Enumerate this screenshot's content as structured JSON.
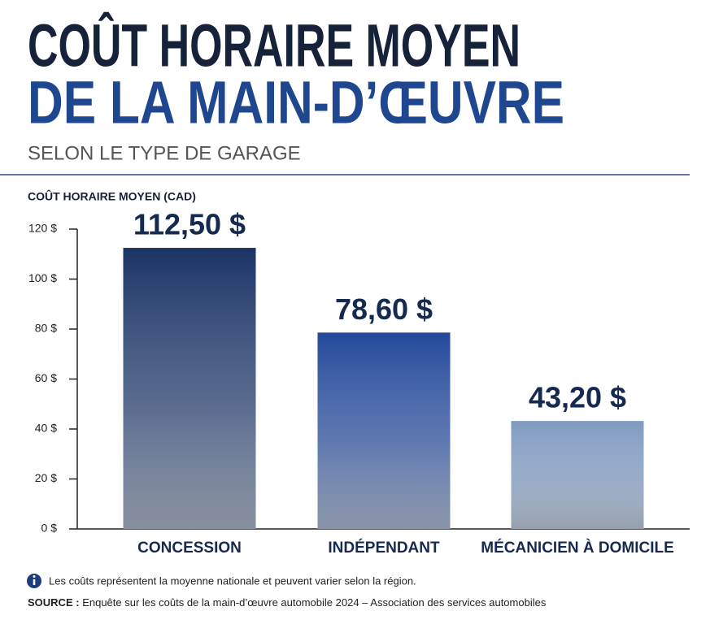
{
  "chart_data": {
    "type": "bar",
    "title": [
      "COÛT HORAIRE MOYEN",
      "DE LA MAIN-D’ŒUVRE"
    ],
    "subtitle": "SELON LE TYPE DE GARAGE",
    "ylabel": "COÛT HORAIRE MOYEN (CAD)",
    "categories": [
      "CONCESSION",
      "INDÉPENDANT",
      "MÉCANICIEN À DOMICILE"
    ],
    "values": [
      112.5,
      78.6,
      43.2
    ],
    "value_labels": [
      "112,50 $",
      "78,60 $",
      "43,20 $"
    ],
    "colors": [
      "#1b3466",
      "#23489a",
      "#7f9ac0"
    ],
    "ylim": [
      0,
      120
    ],
    "yticks": [
      {
        "value": 0,
        "label": "0 $"
      },
      {
        "value": 20,
        "label": "20 $"
      },
      {
        "value": 40,
        "label": "40 $"
      },
      {
        "value": 60,
        "label": "60 $"
      },
      {
        "value": 80,
        "label": "80 $"
      },
      {
        "value": 100,
        "label": "100 $"
      },
      {
        "value": 120,
        "label": "120 $"
      }
    ],
    "note": "Les coûts représentent la moyenne nationale et peuvent varier selon la région.",
    "source_label": "SOURCE :",
    "source_text": "Enquête sur les coûts de la main-d’œuvre automobile 2024 – Association des services automobiles"
  }
}
